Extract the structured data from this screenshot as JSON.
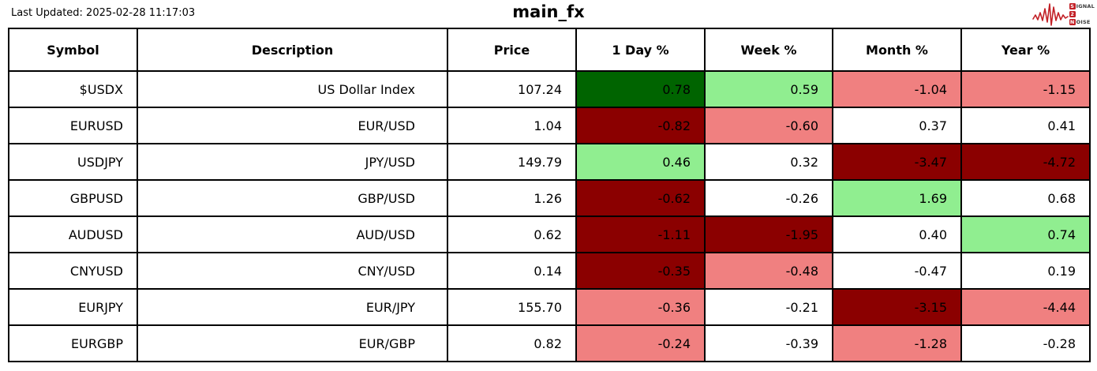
{
  "header": {
    "last_updated": "Last Updated: 2025-02-28 11:17:03",
    "title": "main_fx"
  },
  "logo": {
    "accent": "#c22026",
    "lines": [
      {
        "badge": "S",
        "text": "IGNAL"
      },
      {
        "badge": "2",
        "text": ""
      },
      {
        "badge": "N",
        "text": "OISE"
      }
    ]
  },
  "colors": {
    "darkgreen": "#006400",
    "lightgreen": "#90ee90",
    "lightcoral": "#f08080",
    "darkred": "#8b0000",
    "white": "#ffffff",
    "border": "#000000",
    "text": "#000000"
  },
  "chart_data": {
    "type": "table",
    "title": "main_fx",
    "last_updated": "2025-02-28 11:17:03",
    "columns": [
      "Symbol",
      "Description",
      "Price",
      "1 Day %",
      "Week %",
      "Month %",
      "Year %"
    ],
    "rows": [
      {
        "symbol": "$USDX",
        "description": "US Dollar Index",
        "price": 107.24,
        "pct": [
          0.78,
          0.59,
          -1.04,
          -1.15
        ],
        "pct_colors": [
          "darkgreen",
          "lightgreen",
          "lightcoral",
          "lightcoral"
        ]
      },
      {
        "symbol": "EURUSD",
        "description": "EUR/USD",
        "price": 1.04,
        "pct": [
          -0.82,
          -0.6,
          0.37,
          0.41
        ],
        "pct_colors": [
          "darkred",
          "lightcoral",
          "white",
          "white"
        ]
      },
      {
        "symbol": "USDJPY",
        "description": "JPY/USD",
        "price": 149.79,
        "pct": [
          0.46,
          0.32,
          -3.47,
          -4.72
        ],
        "pct_colors": [
          "lightgreen",
          "white",
          "darkred",
          "darkred"
        ]
      },
      {
        "symbol": "GBPUSD",
        "description": "GBP/USD",
        "price": 1.26,
        "pct": [
          -0.62,
          -0.26,
          1.69,
          0.68
        ],
        "pct_colors": [
          "darkred",
          "white",
          "lightgreen",
          "white"
        ]
      },
      {
        "symbol": "AUDUSD",
        "description": "AUD/USD",
        "price": 0.62,
        "pct": [
          -1.11,
          -1.95,
          0.4,
          0.74
        ],
        "pct_colors": [
          "darkred",
          "darkred",
          "white",
          "lightgreen"
        ]
      },
      {
        "symbol": "CNYUSD",
        "description": "CNY/USD",
        "price": 0.14,
        "pct": [
          -0.35,
          -0.48,
          -0.47,
          0.19
        ],
        "pct_colors": [
          "darkred",
          "lightcoral",
          "white",
          "white"
        ]
      },
      {
        "symbol": "EURJPY",
        "description": "EUR/JPY",
        "price": 155.7,
        "pct": [
          -0.36,
          -0.21,
          -3.15,
          -4.44
        ],
        "pct_colors": [
          "lightcoral",
          "white",
          "darkred",
          "lightcoral"
        ]
      },
      {
        "symbol": "EURGBP",
        "description": "EUR/GBP",
        "price": 0.82,
        "pct": [
          -0.24,
          -0.39,
          -1.28,
          -0.28
        ],
        "pct_colors": [
          "lightcoral",
          "white",
          "lightcoral",
          "white"
        ]
      }
    ]
  }
}
